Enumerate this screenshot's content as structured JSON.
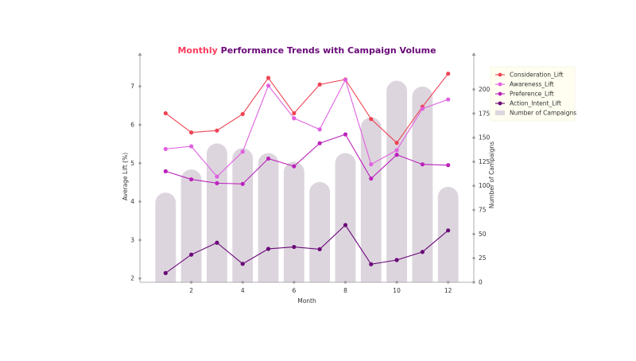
{
  "chart_data": {
    "type": "line",
    "title_parts": [
      {
        "text": "Monthly",
        "color": "#ff3b5c"
      },
      {
        "text": " Performance Trends with Campaign Volume",
        "color": "#6a0a78"
      }
    ],
    "xlabel": "Month",
    "ylabel": "Average Lift (%)",
    "y2label": "Number of Campaigns",
    "x": [
      1,
      2,
      3,
      4,
      5,
      6,
      7,
      8,
      9,
      10,
      11,
      12
    ],
    "xticks": [
      2,
      4,
      6,
      8,
      10,
      12
    ],
    "xlim": [
      0,
      13
    ],
    "ylim": [
      1.9,
      7.8
    ],
    "yticks": [
      2,
      3,
      4,
      5,
      6,
      7
    ],
    "y2lim": [
      0,
      235
    ],
    "y2ticks": [
      0,
      25,
      50,
      75,
      100,
      125,
      150,
      175,
      200
    ],
    "series": [
      {
        "name": "Consideration_Lift",
        "color": "#ee4455",
        "values": [
          6.3,
          5.8,
          5.85,
          6.28,
          7.22,
          6.3,
          7.05,
          7.18,
          6.15,
          5.53,
          6.47,
          7.33
        ]
      },
      {
        "name": "Awareness_Lift",
        "color": "#e060e0",
        "values": [
          5.37,
          5.44,
          4.65,
          5.3,
          7.02,
          6.17,
          5.88,
          7.17,
          4.97,
          5.34,
          6.42,
          6.66
        ]
      },
      {
        "name": "Preference_Lift",
        "color": "#bb22bb",
        "values": [
          4.79,
          4.58,
          4.48,
          4.46,
          5.12,
          4.92,
          5.52,
          5.75,
          4.6,
          5.22,
          4.97,
          4.95
        ]
      },
      {
        "name": "Action_Intent_Lift",
        "color": "#6a0a78",
        "values": [
          2.14,
          2.62,
          2.93,
          2.38,
          2.77,
          2.82,
          2.76,
          3.39,
          2.37,
          2.48,
          2.69,
          3.25
        ]
      }
    ],
    "bars": {
      "name": "Number of Campaigns",
      "color": "#ddd5de",
      "values": [
        93,
        117,
        144,
        139,
        134,
        125,
        104,
        134,
        171,
        209,
        203,
        99
      ]
    },
    "legend_position": "top-right",
    "grid": false
  }
}
